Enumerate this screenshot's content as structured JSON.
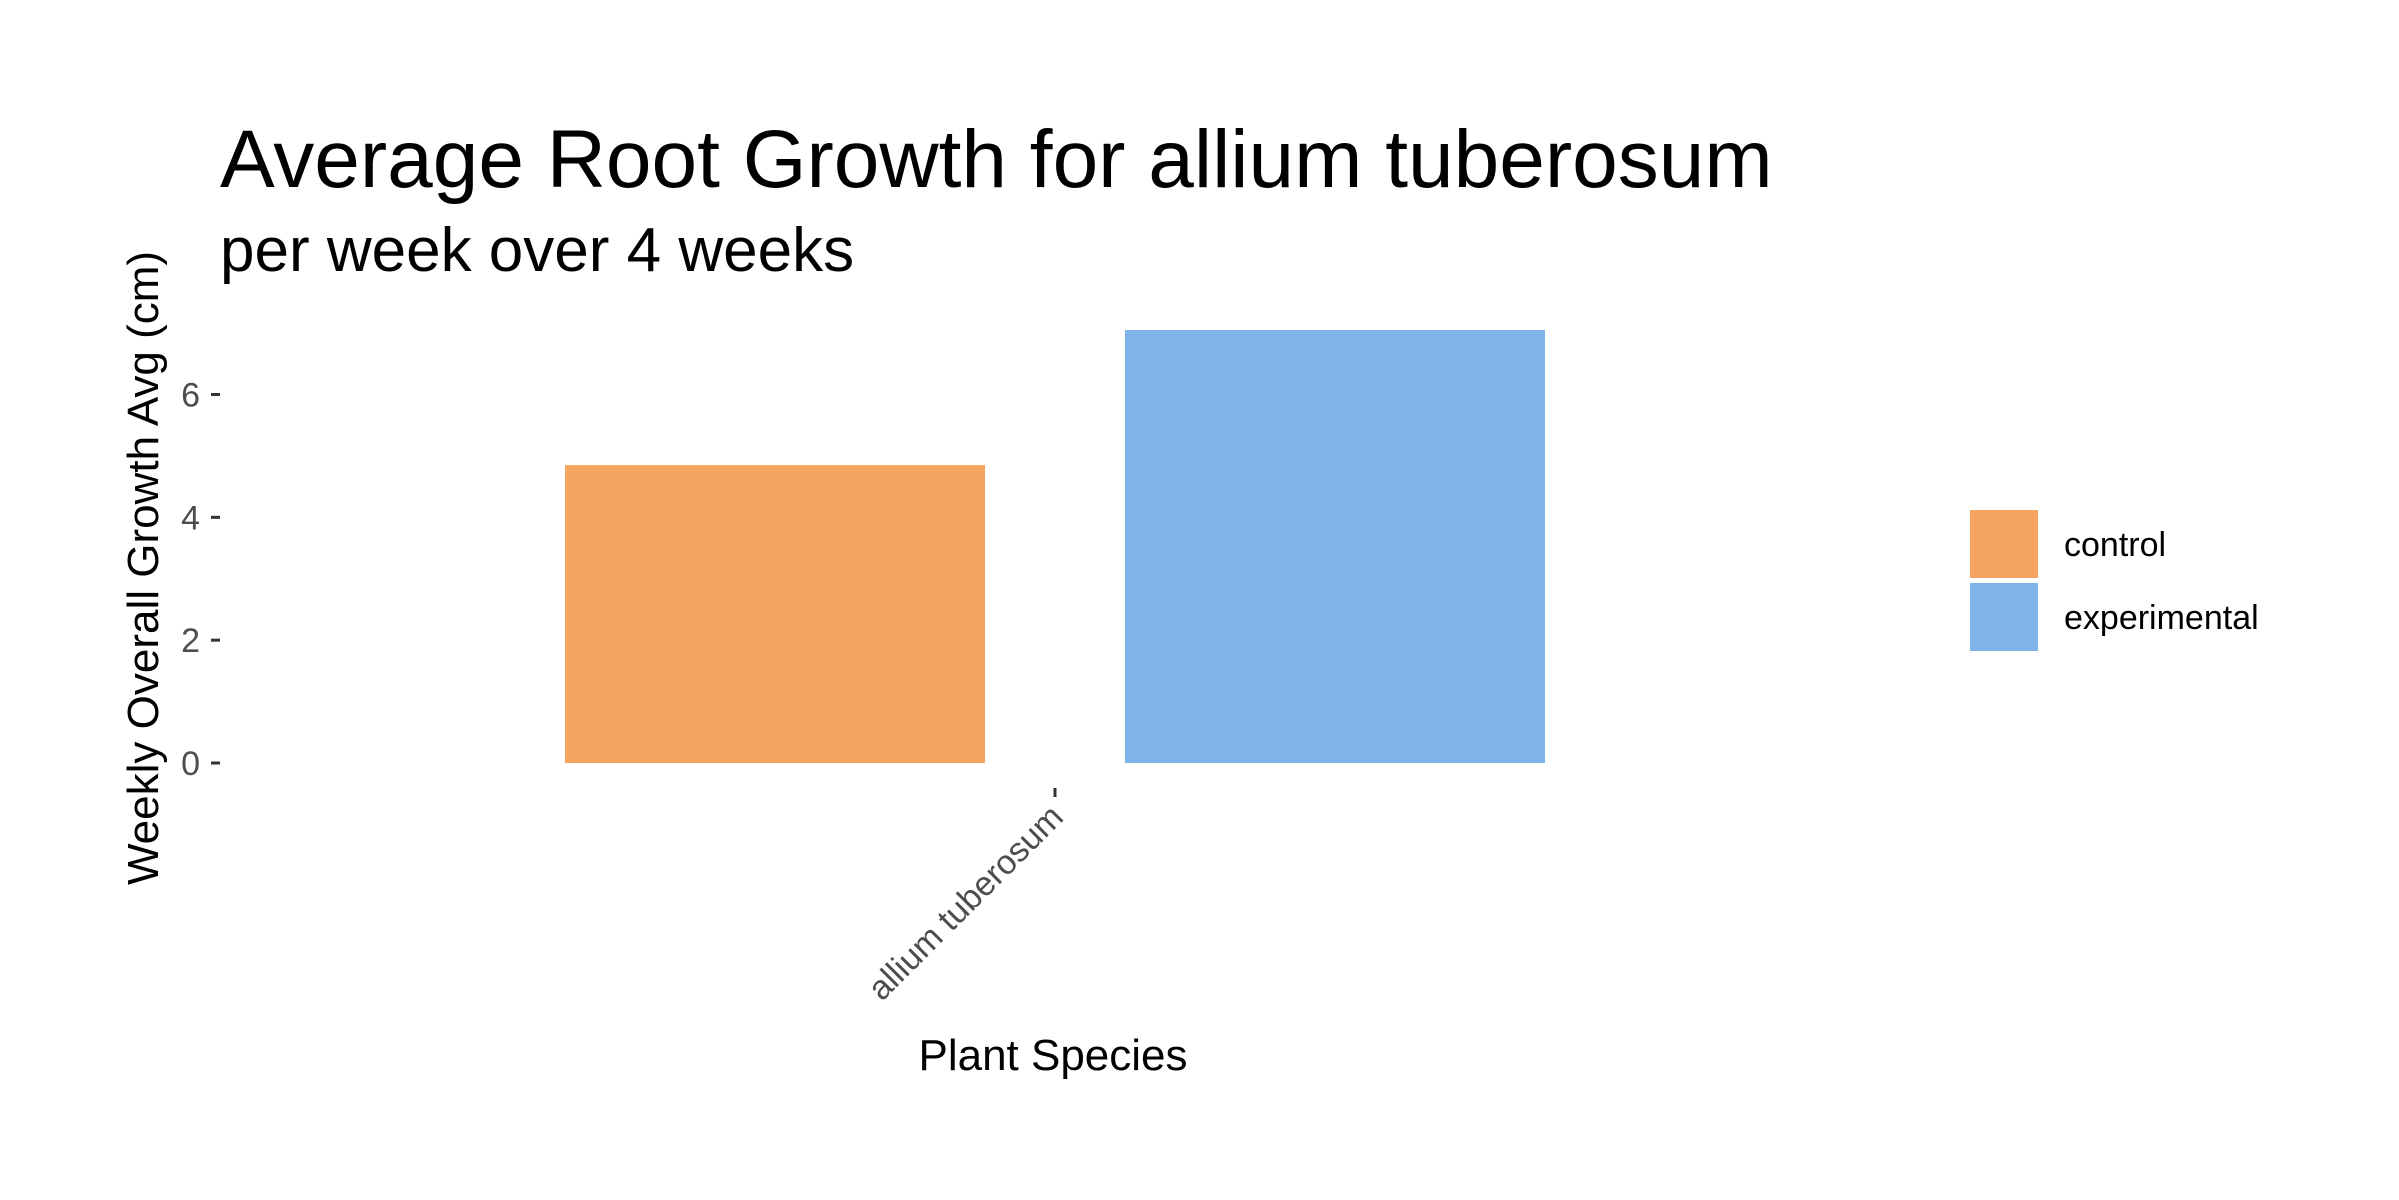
{
  "chart_data": {
    "type": "bar",
    "title": "Average Root Growth for allium tuberosum",
    "subtitle": "per week over 4 weeks",
    "xlabel": "Plant Species",
    "ylabel": "Weekly Overall Growth Avg (cm)",
    "categories": [
      "allium tuberosum"
    ],
    "series": [
      {
        "name": "control",
        "values": [
          4.85
        ],
        "color": "#F5A55F"
      },
      {
        "name": "experimental",
        "values": [
          7.05
        ],
        "color": "#7EB4EA"
      }
    ],
    "yticks": [
      0,
      2,
      4,
      6
    ],
    "ytick_labels": [
      "0",
      "2",
      "4",
      "6"
    ],
    "ylim": [
      0,
      7.05
    ],
    "grid": false,
    "legend_position": "right"
  }
}
